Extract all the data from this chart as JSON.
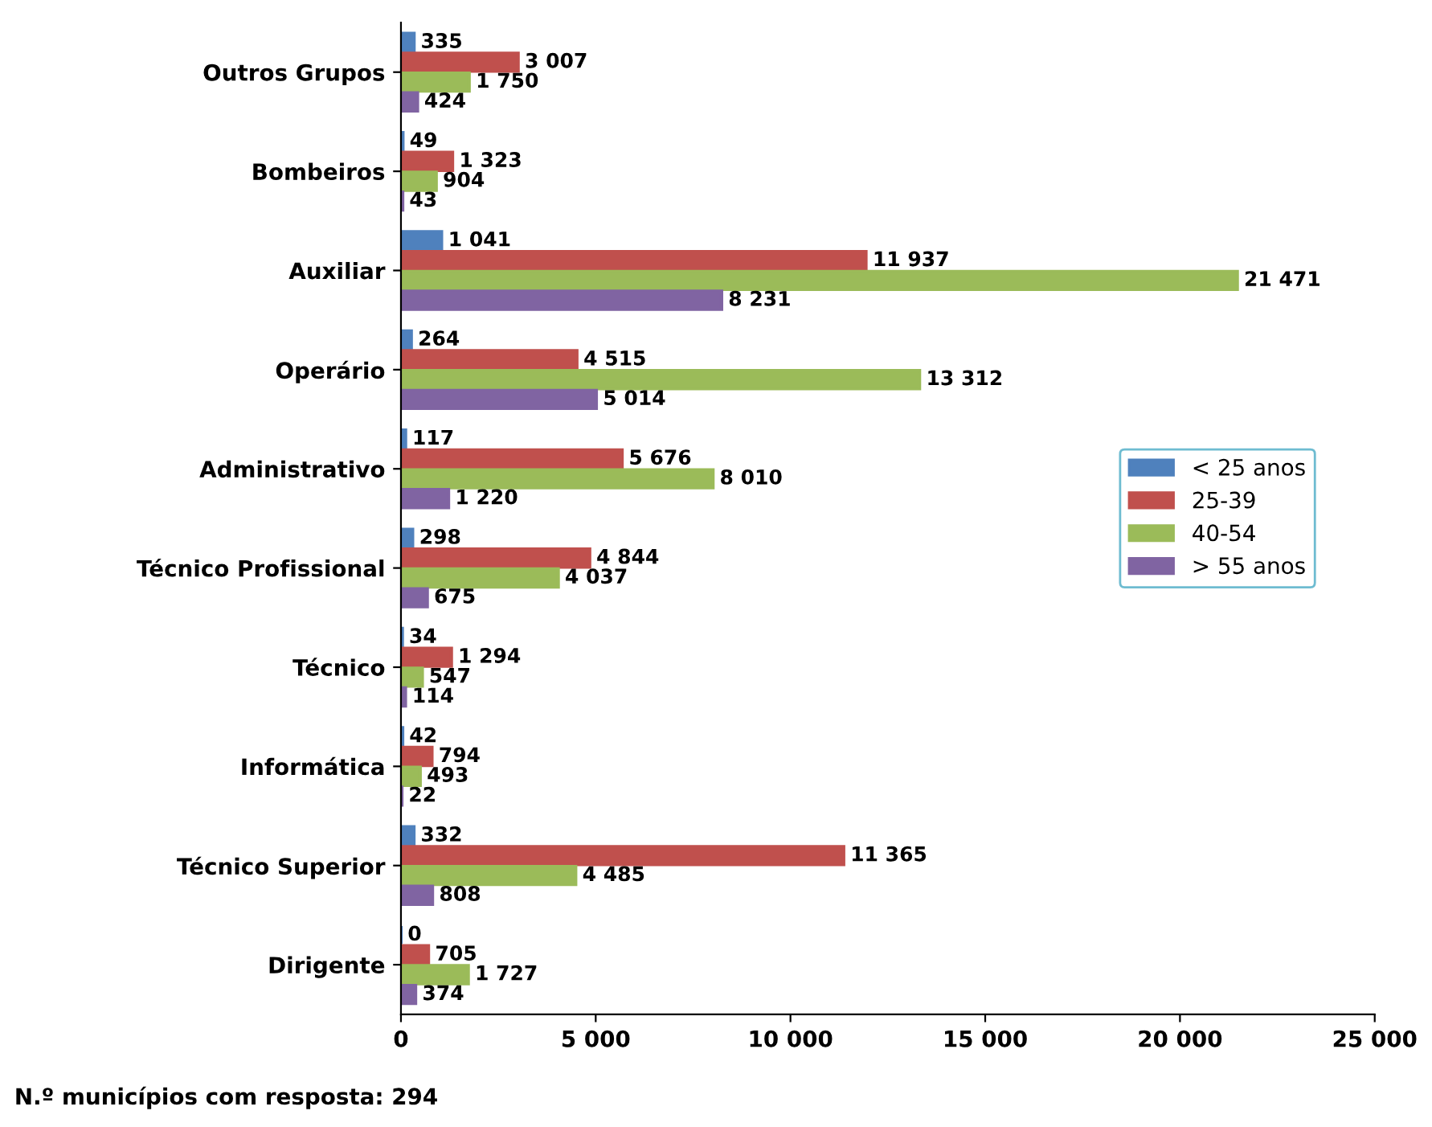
{
  "chart_data": {
    "type": "bar",
    "orientation": "horizontal",
    "categories": [
      "Outros Grupos",
      "Bombeiros",
      "Auxiliar",
      "Operário",
      "Administrativo",
      "Técnico Profissional",
      "Técnico",
      "Informática",
      "Técnico Superior",
      "Dirigente"
    ],
    "series": [
      {
        "name": "< 25 anos",
        "color": "#4f81bd",
        "values": [
          335,
          49,
          1041,
          264,
          117,
          298,
          34,
          42,
          332,
          0
        ],
        "value_labels": [
          "335",
          "49",
          "1 041",
          "264",
          "117",
          "298",
          "34",
          "42",
          "332",
          "0"
        ]
      },
      {
        "name": "25-39",
        "color": "#c0504d",
        "values": [
          3007,
          1323,
          11937,
          4515,
          5676,
          4844,
          1294,
          794,
          11365,
          705
        ],
        "value_labels": [
          "3 007",
          "1 323",
          "11 937",
          "4 515",
          "5 676",
          "4 844",
          "1 294",
          "794",
          "11 365",
          "705"
        ]
      },
      {
        "name": "40-54",
        "color": "#9bbb59",
        "values": [
          1750,
          904,
          21471,
          13312,
          8010,
          4037,
          547,
          493,
          4485,
          1727
        ],
        "value_labels": [
          "1 750",
          "904",
          "21 471",
          "13 312",
          "8 010",
          "4 037",
          "547",
          "493",
          "4 485",
          "1 727"
        ]
      },
      {
        "name": "> 55 anos",
        "color": "#8064a2",
        "values": [
          424,
          43,
          8231,
          5014,
          1220,
          675,
          114,
          22,
          808,
          374
        ],
        "value_labels": [
          "424",
          "43",
          "8 231",
          "5 014",
          "1 220",
          "675",
          "114",
          "22",
          "808",
          "374"
        ]
      }
    ],
    "xlim": [
      0,
      25000
    ],
    "xticks": [
      0,
      {
        "value": 5000,
        "label": "5 000"
      },
      {
        "value": 10000,
        "label": "10 000"
      },
      {
        "value": 15000,
        "label": "15 000"
      },
      {
        "value": 20000,
        "label": "20 000"
      },
      {
        "value": 25000,
        "label": "25 000"
      }
    ],
    "legend": "right",
    "annotations": [
      "N.º municípios com resposta: 294"
    ]
  }
}
